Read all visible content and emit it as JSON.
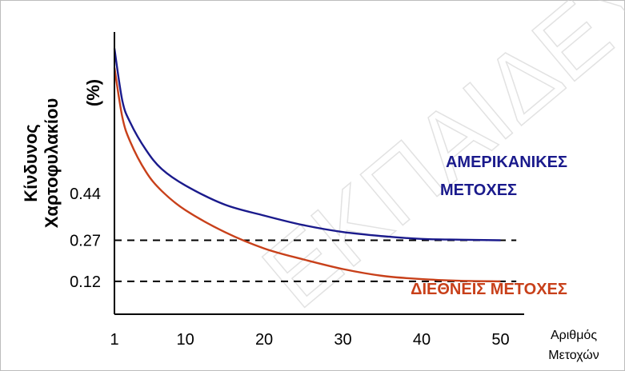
{
  "watermark": "ΕΚΠΑΙΔΕΥΤΙΚΟ ΥΛΙΚΟ",
  "chart_data": {
    "type": "line",
    "xlabel": [
      "Αριθμός",
      "Μετοχών"
    ],
    "ylabel": [
      "Κίνδυνος",
      "Χαρτοφυλακίου",
      "(%)"
    ],
    "x_ticks": [
      1,
      10,
      20,
      30,
      40,
      50
    ],
    "xlim": [
      1,
      53
    ],
    "y_ticks": [
      0.12,
      0.27,
      0.44
    ],
    "ylim": [
      0,
      1.03
    ],
    "grid": false,
    "reference_lines": [
      {
        "y": 0.27,
        "x_to": 52,
        "style": "dashed",
        "color": "#000000"
      },
      {
        "y": 0.12,
        "x_to": 52,
        "style": "dashed",
        "color": "#000000"
      }
    ],
    "series": [
      {
        "name": "ΑΜΕΡΙΚΑΝΙΚΕΣ ΜΕΤΟΧΕΣ",
        "label_lines": [
          "ΑΜΕΡΙΚΑΝΙΚΕΣ",
          "ΜΕΤΟΧΕΣ"
        ],
        "label_position": "right-upper",
        "color": "#1a1a8c",
        "x": [
          1,
          2,
          3,
          5,
          7,
          10,
          15,
          20,
          25,
          30,
          35,
          40,
          45,
          50
        ],
        "y": [
          0.97,
          0.78,
          0.7,
          0.6,
          0.53,
          0.47,
          0.4,
          0.36,
          0.325,
          0.3,
          0.285,
          0.275,
          0.272,
          0.27
        ]
      },
      {
        "name": "ΔΙΕΘΝΕΙΣ ΜΕΤΟΧΕΣ",
        "label_lines": [
          "ΔΙΕΘΝΕΙΣ ΜΕΤΟΧΕΣ"
        ],
        "label_position": "right-lower",
        "color": "#c8401a",
        "x": [
          1,
          2,
          3,
          5,
          7,
          10,
          15,
          20,
          25,
          30,
          35,
          40,
          45,
          50
        ],
        "y": [
          0.9,
          0.72,
          0.63,
          0.52,
          0.45,
          0.38,
          0.3,
          0.24,
          0.2,
          0.165,
          0.14,
          0.128,
          0.122,
          0.12
        ]
      }
    ]
  }
}
